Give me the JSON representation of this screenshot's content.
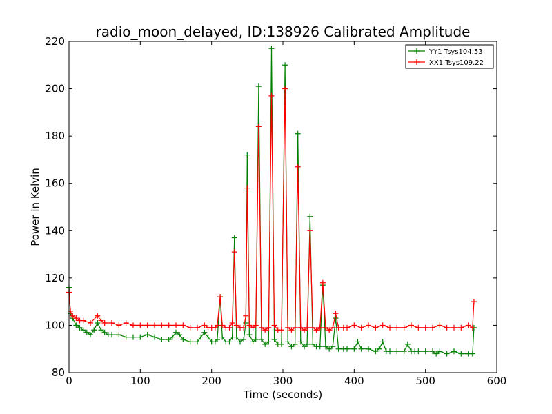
{
  "chart_data": {
    "type": "line",
    "title": "radio_moon_delayed, ID:138926 Calibrated Amplitude",
    "xlabel": "Time (seconds)",
    "ylabel": "Power in Kelvin",
    "xlim": [
      0,
      600
    ],
    "ylim": [
      80,
      220
    ],
    "xticks": [
      0,
      100,
      200,
      300,
      400,
      500,
      600
    ],
    "yticks": [
      80,
      100,
      120,
      140,
      160,
      180,
      200,
      220
    ],
    "grid": false,
    "legend_position": "top-right",
    "marker": "+",
    "series": [
      {
        "name": "YY1 Tsys104.53",
        "color": "#008000",
        "x": [
          0,
          2,
          5,
          10,
          15,
          20,
          25,
          30,
          35,
          40,
          45,
          50,
          55,
          60,
          70,
          80,
          90,
          100,
          110,
          120,
          130,
          140,
          145,
          150,
          155,
          160,
          170,
          180,
          185,
          190,
          195,
          200,
          205,
          208,
          212,
          215,
          220,
          225,
          229,
          232,
          235,
          240,
          245,
          248,
          250,
          253,
          258,
          262,
          266,
          270,
          275,
          280,
          284,
          288,
          293,
          298,
          303,
          307,
          312,
          317,
          321,
          325,
          330,
          334,
          338,
          342,
          347,
          352,
          356,
          360,
          365,
          370,
          374,
          378,
          385,
          390,
          400,
          405,
          410,
          420,
          430,
          435,
          440,
          445,
          450,
          460,
          470,
          475,
          480,
          485,
          490,
          500,
          510,
          515,
          520,
          530,
          540,
          550,
          560,
          566,
          568
        ],
        "values": [
          116,
          105,
          103,
          100,
          99,
          98,
          97,
          96,
          98,
          101,
          98,
          97,
          96,
          96,
          96,
          95,
          95,
          95,
          96,
          95,
          94,
          94,
          95,
          97,
          96,
          94,
          93,
          93,
          95,
          97,
          95,
          93,
          93,
          94,
          112,
          95,
          93,
          93,
          95,
          137,
          95,
          93,
          94,
          101,
          172,
          96,
          93,
          94,
          201,
          94,
          92,
          93,
          217,
          94,
          92,
          92,
          210,
          93,
          91,
          92,
          181,
          93,
          91,
          92,
          146,
          92,
          91,
          91,
          117,
          91,
          90,
          91,
          103,
          90,
          90,
          90,
          90,
          93,
          90,
          90,
          89,
          90,
          93,
          89,
          89,
          89,
          89,
          92,
          89,
          89,
          89,
          89,
          89,
          88,
          89,
          88,
          89,
          88,
          88,
          88,
          99
        ]
      },
      {
        "name": "XX1 Tsys109.22",
        "color": "#ff0000",
        "x": [
          0,
          2,
          5,
          10,
          15,
          20,
          30,
          40,
          45,
          50,
          60,
          70,
          80,
          90,
          100,
          110,
          120,
          130,
          140,
          150,
          160,
          170,
          180,
          190,
          195,
          200,
          205,
          208,
          212,
          215,
          220,
          225,
          229,
          232,
          235,
          240,
          245,
          248,
          250,
          253,
          258,
          262,
          266,
          270,
          275,
          280,
          284,
          288,
          293,
          298,
          303,
          307,
          312,
          317,
          321,
          325,
          330,
          334,
          338,
          342,
          347,
          352,
          356,
          360,
          365,
          370,
          374,
          378,
          385,
          390,
          400,
          410,
          420,
          430,
          440,
          450,
          460,
          470,
          480,
          490,
          500,
          510,
          520,
          530,
          540,
          550,
          560,
          566,
          568
        ],
        "values": [
          114,
          106,
          104,
          103,
          102,
          102,
          101,
          104,
          102,
          101,
          101,
          100,
          101,
          100,
          100,
          100,
          100,
          100,
          100,
          100,
          100,
          99,
          99,
          100,
          99,
          99,
          99,
          100,
          112,
          100,
          99,
          99,
          101,
          131,
          100,
          99,
          99,
          104,
          158,
          100,
          99,
          100,
          184,
          99,
          98,
          99,
          197,
          100,
          98,
          98,
          200,
          99,
          98,
          99,
          167,
          99,
          98,
          99,
          140,
          99,
          98,
          99,
          118,
          99,
          98,
          99,
          105,
          99,
          99,
          99,
          100,
          99,
          100,
          99,
          100,
          99,
          99,
          99,
          100,
          99,
          99,
          99,
          100,
          99,
          99,
          99,
          100,
          99,
          110
        ]
      }
    ]
  }
}
